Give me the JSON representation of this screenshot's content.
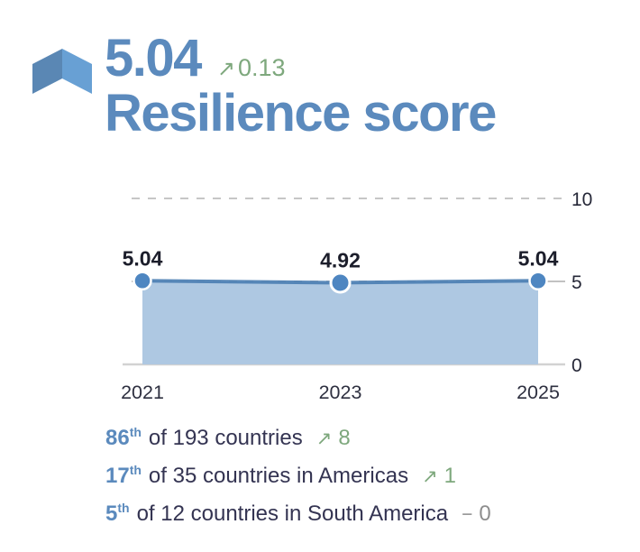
{
  "header": {
    "score": "5.04",
    "delta_arrow": "↗",
    "delta": "0.13",
    "title": "Resilience score"
  },
  "chart_data": {
    "type": "area",
    "x": [
      2021,
      2023,
      2025
    ],
    "x_tick_labels": [
      "2021",
      "2023",
      "2025"
    ],
    "values": [
      5.04,
      4.92,
      5.04
    ],
    "point_labels": [
      "5.04",
      "4.92",
      "5.04"
    ],
    "y_ticks": [
      0,
      5,
      10
    ],
    "ylim": [
      0,
      10
    ],
    "title": "",
    "xlabel": "",
    "ylabel": "",
    "legend": "none",
    "grid": "dashed horizontal gridlines at 5 and 10, solid baseline at 0, tick labels on right"
  },
  "rankings": {
    "items": [
      {
        "rank": "86",
        "suffix": "th",
        "text": "of 193 countries",
        "change_icon": "↗",
        "change": "8",
        "direction": "up"
      },
      {
        "rank": "17",
        "suffix": "th",
        "text": "of 35 countries in Americas",
        "change_icon": "↗",
        "change": "1",
        "direction": "up"
      },
      {
        "rank": "5",
        "suffix": "th",
        "text": "of 12 countries in South America",
        "change_icon": "−",
        "change": "0",
        "direction": "flat"
      }
    ]
  },
  "colors": {
    "accent_blue": "#5b8abd",
    "line_blue": "#4c7fb3",
    "marker_blue": "#4e86c1",
    "area_fill": "#aec8e2",
    "positive_green": "#7ea87d",
    "neutral_gray": "#8d8d8d",
    "grid_gray": "#c6c6c6",
    "icon_left": "#5a87b4",
    "icon_right": "#68a0d4",
    "dark_text": "#1c1e2b",
    "navy_text": "#343452"
  }
}
